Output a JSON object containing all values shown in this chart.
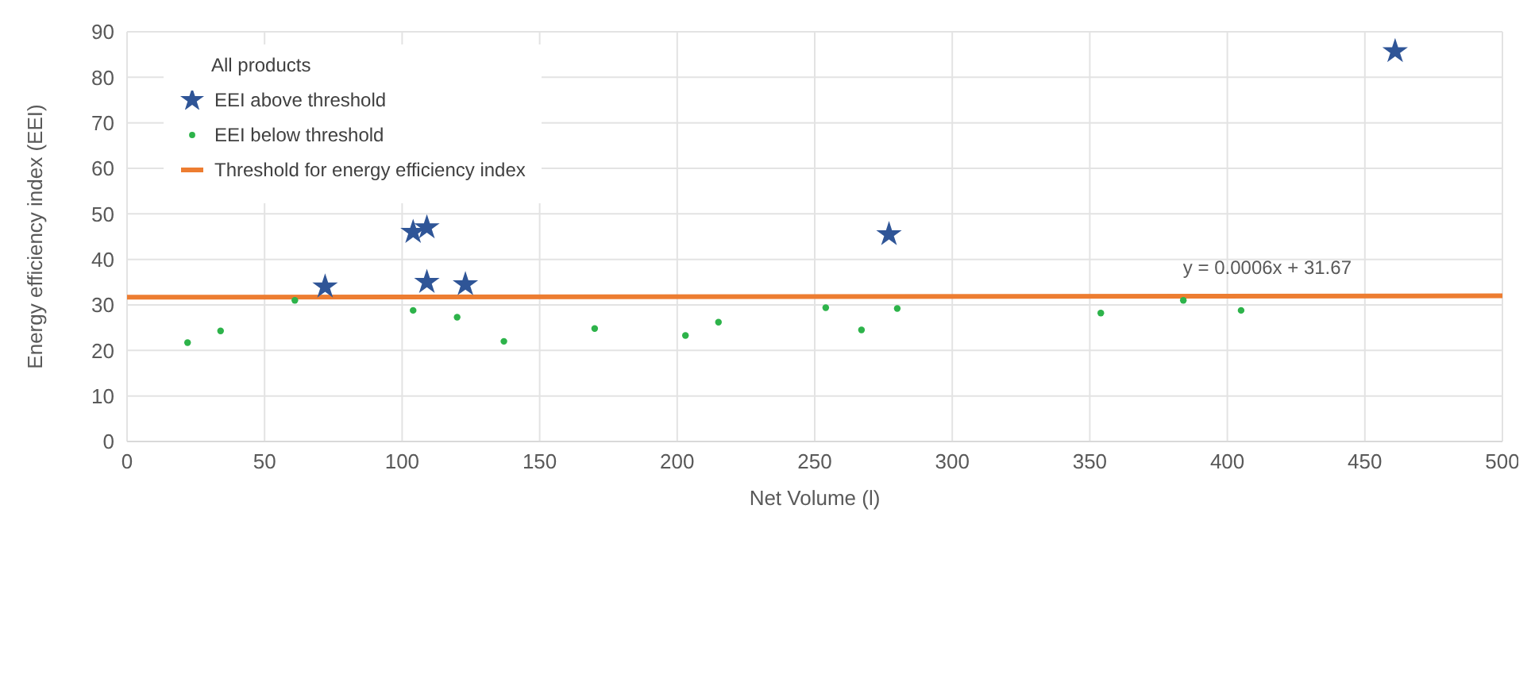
{
  "chart_data": {
    "type": "scatter",
    "xlabel": "Net Volume (l)",
    "ylabel": "Energy efficiency index (EEI)",
    "legend_title": "All products",
    "legend": "top left",
    "grid": true,
    "xlim": [
      0,
      500
    ],
    "xticks": [
      0,
      50,
      100,
      150,
      200,
      250,
      300,
      350,
      400,
      450,
      500
    ],
    "ylim": [
      0,
      90
    ],
    "yticks": [
      0,
      10,
      20,
      30,
      40,
      50,
      60,
      70,
      80,
      90
    ],
    "series": [
      {
        "name": "EEI above threshold",
        "marker": "star",
        "color": "#2f5597",
        "x": [
          72,
          104,
          109,
          109,
          123,
          277,
          461
        ],
        "values": [
          34,
          46,
          47,
          35,
          34.5,
          45.5,
          85.7
        ]
      },
      {
        "name": "EEI below threshold",
        "marker": "circle",
        "color": "#2db34a",
        "x": [
          22,
          34,
          61,
          104,
          120,
          137,
          170,
          203,
          215,
          254,
          267,
          280,
          354,
          384,
          405
        ],
        "values": [
          21.7,
          24.3,
          31,
          28.8,
          27.3,
          22,
          24.8,
          23.3,
          26.2,
          29.4,
          24.5,
          29.2,
          28.2,
          31,
          28.8
        ]
      },
      {
        "name": "Threshold for energy efficiency index",
        "type": "line",
        "marker": "none",
        "color": "#ed7d31",
        "x": [
          0,
          500
        ],
        "values": [
          31.7,
          32
        ]
      }
    ],
    "annotations": [
      "y = 0.0006x + 31.67"
    ]
  }
}
